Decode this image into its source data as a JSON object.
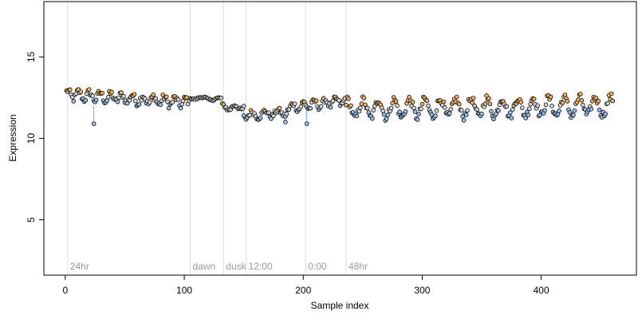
{
  "chart_data": {
    "type": "scatter",
    "xlabel": "Sample index",
    "ylabel": "Expression",
    "xlim": [
      -18,
      480
    ],
    "ylim": [
      1.6,
      18.4
    ],
    "x_ticks": [
      0,
      100,
      200,
      300,
      400
    ],
    "y_ticks": [
      5,
      10,
      15
    ],
    "vertical_markers": [
      {
        "label": "24hr",
        "x": 2
      },
      {
        "label": "dawn",
        "x": 105
      },
      {
        "label": "dusk",
        "x": 133
      },
      {
        "label": "12:00",
        "x": 152
      },
      {
        "label": "0:00",
        "x": 202
      },
      {
        "label": "48hr",
        "x": 236
      }
    ],
    "colors": {
      "high": "#f0b468",
      "low": "#9cc1ea",
      "neutral": "#d8d8d8",
      "stem": "#7fa6d9",
      "marker_line": "#dddddd",
      "marker_text": "#9a9a9a"
    },
    "baseline_stems": [
      {
        "x": 24,
        "baseline": 12.0,
        "y": 10.9
      },
      {
        "x": 150,
        "baseline": 11.8,
        "y": 11.4
      },
      {
        "x": 185,
        "baseline": 11.9,
        "y": 11.0
      },
      {
        "x": 203,
        "baseline": 12.2,
        "y": 10.9
      }
    ],
    "segments": [
      {
        "x0": 1,
        "y0": 12.7,
        "x1": 104,
        "y1": 12.2,
        "amp": 0.25,
        "period": 9,
        "noise": 0.22,
        "n": 104
      },
      {
        "x0": 105,
        "y0": 12.5,
        "x1": 131,
        "y1": 12.4,
        "amp": 0.08,
        "period": 14,
        "noise": 0.06,
        "n": 27
      },
      {
        "x0": 132,
        "y0": 11.9,
        "x1": 150,
        "y1": 11.9,
        "amp": 0.15,
        "period": 10,
        "noise": 0.12,
        "n": 19
      },
      {
        "x0": 151,
        "y0": 11.4,
        "x1": 186,
        "y1": 11.6,
        "amp": 0.2,
        "period": 11,
        "noise": 0.15,
        "n": 36
      },
      {
        "x0": 187,
        "y0": 11.9,
        "x1": 235,
        "y1": 12.3,
        "amp": 0.22,
        "period": 9,
        "noise": 0.18,
        "n": 49
      },
      {
        "x0": 236,
        "y0": 11.8,
        "x1": 460,
        "y1": 12.0,
        "amp": 0.55,
        "period": 13,
        "noise": 0.25,
        "n": 225
      }
    ]
  }
}
